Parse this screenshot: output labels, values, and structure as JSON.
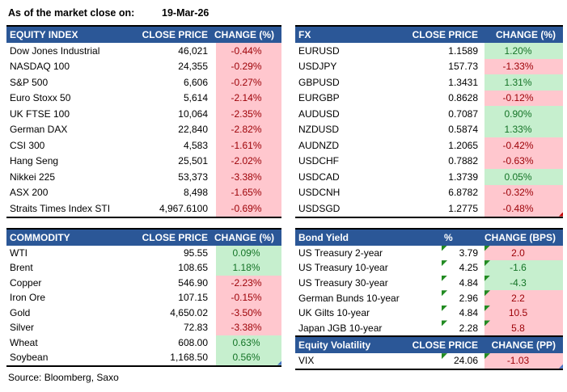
{
  "meta": {
    "as_of_label": "As of the market close on:",
    "as_of_date": "19-Mar-26",
    "source": "Source: Bloomberg, Saxo"
  },
  "colors": {
    "header_bg": "#2B5797",
    "header_text": "#FFFFFF",
    "positive_bg": "#C6EFCE",
    "positive_text": "#147326",
    "negative_bg": "#FFC7CE",
    "negative_text": "#9C0006",
    "error_flag": "#228B22",
    "border": "#000000"
  },
  "tables": {
    "equity": {
      "title": "EQUITY INDEX",
      "col2": "CLOSE PRICE",
      "col3": "CHANGE (%)",
      "rows": [
        {
          "name": "Dow Jones Industrial",
          "value": "46,021",
          "change": "-0.44%",
          "tone": "neg"
        },
        {
          "name": "NASDAQ 100",
          "value": "24,355",
          "change": "-0.29%",
          "tone": "neg"
        },
        {
          "name": "S&P 500",
          "value": "6,606",
          "change": "-0.27%",
          "tone": "neg"
        },
        {
          "name": "Euro Stoxx 50",
          "value": "5,614",
          "change": "-2.14%",
          "tone": "neg"
        },
        {
          "name": "UK FTSE 100",
          "value": "10,064",
          "change": "-2.35%",
          "tone": "neg"
        },
        {
          "name": "German DAX",
          "value": "22,840",
          "change": "-2.82%",
          "tone": "neg"
        },
        {
          "name": "CSI 300",
          "value": "4,583",
          "change": "-1.61%",
          "tone": "neg"
        },
        {
          "name": "Hang Seng",
          "value": "25,501",
          "change": "-2.02%",
          "tone": "neg"
        },
        {
          "name": "Nikkei 225",
          "value": "53,373",
          "change": "-3.38%",
          "tone": "neg"
        },
        {
          "name": "ASX 200",
          "value": "8,498",
          "change": "-1.65%",
          "tone": "neg"
        },
        {
          "name": "Straits Times Index STI",
          "value": "4,967.6100",
          "change": "-0.69%",
          "tone": "neg"
        }
      ]
    },
    "fx": {
      "title": "FX",
      "col2": "CLOSE PRICE",
      "col3": "CHANGE (%)",
      "rows": [
        {
          "name": "EURUSD",
          "value": "1.1589",
          "change": "1.20%",
          "tone": "pos"
        },
        {
          "name": "USDJPY",
          "value": "157.73",
          "change": "-1.33%",
          "tone": "neg"
        },
        {
          "name": "GBPUSD",
          "value": "1.3431",
          "change": "1.31%",
          "tone": "pos"
        },
        {
          "name": "EURGBP",
          "value": "0.8628",
          "change": "-0.12%",
          "tone": "neg"
        },
        {
          "name": "AUDUSD",
          "value": "0.7087",
          "change": "0.90%",
          "tone": "pos"
        },
        {
          "name": "NZDUSD",
          "value": "0.5874",
          "change": "1.33%",
          "tone": "pos"
        },
        {
          "name": "AUDNZD",
          "value": "1.2065",
          "change": "-0.42%",
          "tone": "neg"
        },
        {
          "name": "USDCHF",
          "value": "0.7882",
          "change": "-0.63%",
          "tone": "neg"
        },
        {
          "name": "USDCAD",
          "value": "1.3739",
          "change": "0.05%",
          "tone": "pos"
        },
        {
          "name": "USDCNH",
          "value": "6.8782",
          "change": "-0.32%",
          "tone": "neg"
        },
        {
          "name": "USDSGD",
          "value": "1.2775",
          "change": "-0.48%",
          "tone": "neg",
          "corner": "#C00000"
        }
      ]
    },
    "commodity": {
      "title": "COMMODITY",
      "col2": "CLOSE PRICE",
      "col3": "CHANGE (%)",
      "rows": [
        {
          "name": "WTI",
          "value": "95.55",
          "change": "0.09%",
          "tone": "pos"
        },
        {
          "name": "Brent",
          "value": "108.65",
          "change": "1.18%",
          "tone": "pos"
        },
        {
          "name": "Copper",
          "value": "546.90",
          "change": "-2.23%",
          "tone": "neg"
        },
        {
          "name": "Iron Ore",
          "value": "107.15",
          "change": "-0.15%",
          "tone": "neg"
        },
        {
          "name": "Gold",
          "value": "4,650.02",
          "change": "-3.50%",
          "tone": "neg"
        },
        {
          "name": "Silver",
          "value": "72.83",
          "change": "-3.38%",
          "tone": "neg"
        },
        {
          "name": "Wheat",
          "value": "608.00",
          "change": "0.63%",
          "tone": "pos"
        },
        {
          "name": "Soybean",
          "value": "1,168.50",
          "change": "0.56%",
          "tone": "pos",
          "corner": "#4472C4"
        }
      ]
    },
    "bond": {
      "title": "Bond Yield",
      "col2": "%",
      "col3": "CHANGE (BPS)",
      "rows": [
        {
          "name": "US Treasury 2-year",
          "value": "3.79",
          "change": "2.0",
          "tone": "neg",
          "flag": true
        },
        {
          "name": "US Treasury 10-year",
          "value": "4.25",
          "change": "-1.6",
          "tone": "pos",
          "flag": true
        },
        {
          "name": "US Treasury 30-year",
          "value": "4.84",
          "change": "-4.3",
          "tone": "pos",
          "flag": true
        },
        {
          "name": "German Bunds 10-year",
          "value": "2.96",
          "change": "2.2",
          "tone": "neg",
          "flag": true
        },
        {
          "name": "UK Gilts 10-year",
          "value": "4.84",
          "change": "10.5",
          "tone": "neg",
          "flag": true
        },
        {
          "name": "Japan JGB 10-year",
          "value": "2.28",
          "change": "5.8",
          "tone": "neg",
          "flag": true
        }
      ]
    },
    "vol": {
      "title": "Equity Volatility",
      "col2": "CLOSE PRICE",
      "col3": "CHANGE (PP)",
      "rows": [
        {
          "name": "VIX",
          "value": "24.06",
          "change": "-1.03",
          "tone": "neg",
          "flag": true,
          "corner": "#4472C4"
        }
      ]
    }
  }
}
